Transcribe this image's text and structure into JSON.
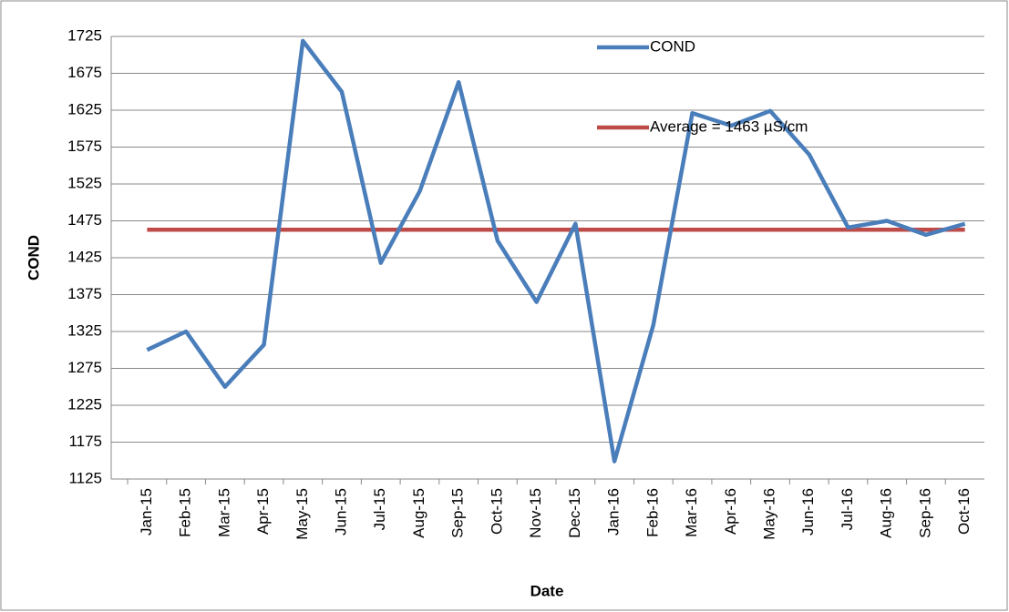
{
  "chart_data": {
    "type": "line",
    "x_label": "Date",
    "y_label": "COND",
    "categories": [
      "Jan-15",
      "Feb-15",
      "Mar-15",
      "Apr-15",
      "May-15",
      "Jun-15",
      "Jul-15",
      "Aug-15",
      "Sep-15",
      "Oct-15",
      "Nov-15",
      "Dec-15",
      "Jan-16",
      "Feb-16",
      "Mar-16",
      "Apr-16",
      "May-16",
      "Jun-16",
      "Jul-16",
      "Aug-16",
      "Sep-16",
      "Oct-16"
    ],
    "series": [
      {
        "name": "COND",
        "color": "#4a7ebb",
        "values": [
          1300,
          1325,
          1250,
          1307,
          1719,
          1650,
          1418,
          1515,
          1663,
          1448,
          1365,
          1471,
          1149,
          1334,
          1621,
          1604,
          1624,
          1565,
          1466,
          1475,
          1456,
          1471
        ]
      },
      {
        "name": "Average = 1463  µS/cm",
        "color": "#be4b48",
        "values": [
          1463,
          1463,
          1463,
          1463,
          1463,
          1463,
          1463,
          1463,
          1463,
          1463,
          1463,
          1463,
          1463,
          1463,
          1463,
          1463,
          1463,
          1463,
          1463,
          1463,
          1463,
          1463
        ]
      }
    ],
    "ylim": [
      1125,
      1725
    ],
    "yticks": [
      1125,
      1175,
      1225,
      1275,
      1325,
      1375,
      1425,
      1475,
      1525,
      1575,
      1625,
      1675,
      1725
    ],
    "grid": true
  }
}
